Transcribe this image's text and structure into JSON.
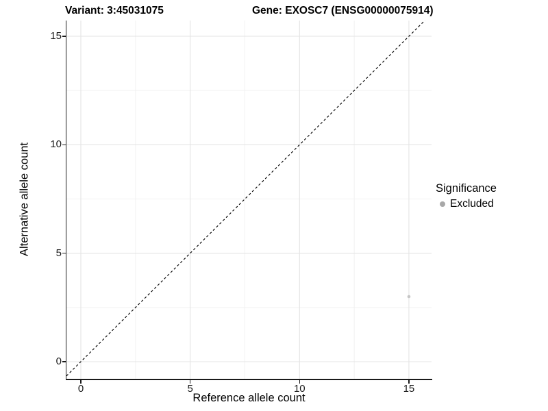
{
  "title": {
    "variant": "Variant: 3:45031075",
    "gene": "Gene: EXOSC7 (ENSG00000075914)"
  },
  "x_axis": {
    "label": "Reference allele count"
  },
  "y_axis": {
    "label": "Alternative allele count"
  },
  "legend": {
    "title": "Significance",
    "items": [
      {
        "label": "Excluded",
        "marker": "circle-icon",
        "color": "#a8a8a8"
      }
    ]
  },
  "colors": {
    "grid_major": "#e4e4e4",
    "grid_minor": "#f0f0f0",
    "axis_line": "#1a1a1a",
    "point": "#c6c6c6",
    "reference_line": "#000000"
  },
  "chart_data": {
    "type": "scatter",
    "title": "Variant: 3:45031075 | Gene: EXOSC7 (ENSG00000075914)",
    "xlabel": "Reference allele count",
    "ylabel": "Alternative allele count",
    "xlim": [
      -0.66,
      16.04
    ],
    "ylim": [
      -0.79,
      15.72
    ],
    "x_ticks": [
      0,
      5,
      10,
      15
    ],
    "y_ticks": [
      0,
      5,
      10,
      15
    ],
    "grid": true,
    "grid_minor": true,
    "legend_position": "right-middle",
    "series": [
      {
        "name": "Excluded",
        "color": "#c6c6c6",
        "point_size": 2.3,
        "points": [
          [
            15,
            3
          ]
        ]
      }
    ],
    "reference_line": {
      "slope": 1,
      "intercept": 0,
      "style": "dashed",
      "color": "#000000"
    }
  }
}
